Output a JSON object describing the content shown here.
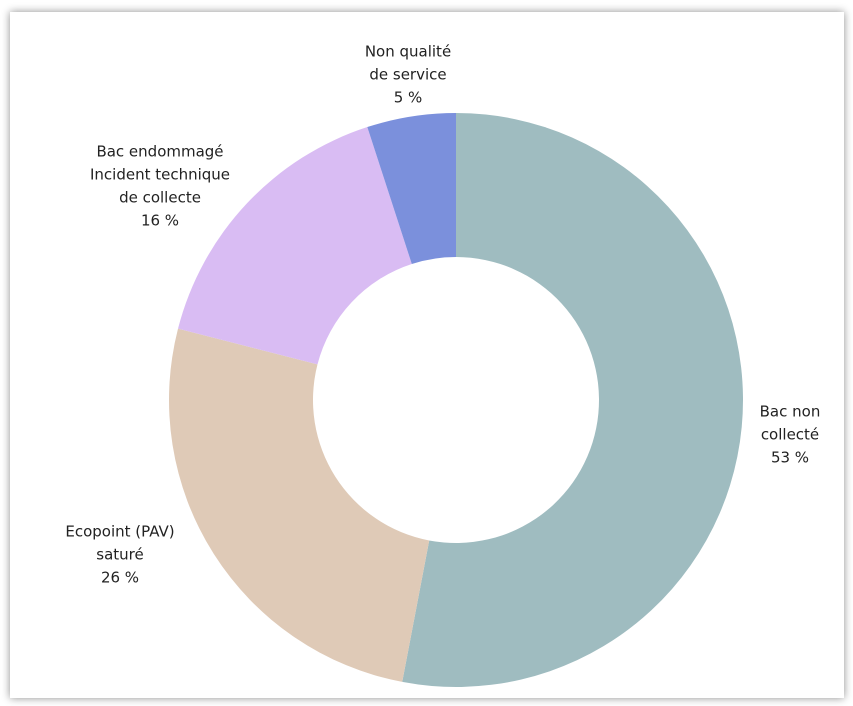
{
  "chart_data": {
    "type": "donut",
    "categories": [
      [
        "Bac non",
        "collecté"
      ],
      [
        "Ecopoint (PAV)",
        "saturé"
      ],
      [
        "Bac endommagé",
        "Incident technique",
        "de collecte"
      ],
      [
        "Non qualité",
        "de service"
      ]
    ],
    "values": [
      53,
      26,
      16,
      5
    ],
    "value_labels": [
      "53 %",
      "26 %",
      "16 %",
      "5 %"
    ],
    "colors": [
      "#9fbcc0",
      "#dfcab7",
      "#d9bcf3",
      "#7b90dc"
    ]
  }
}
